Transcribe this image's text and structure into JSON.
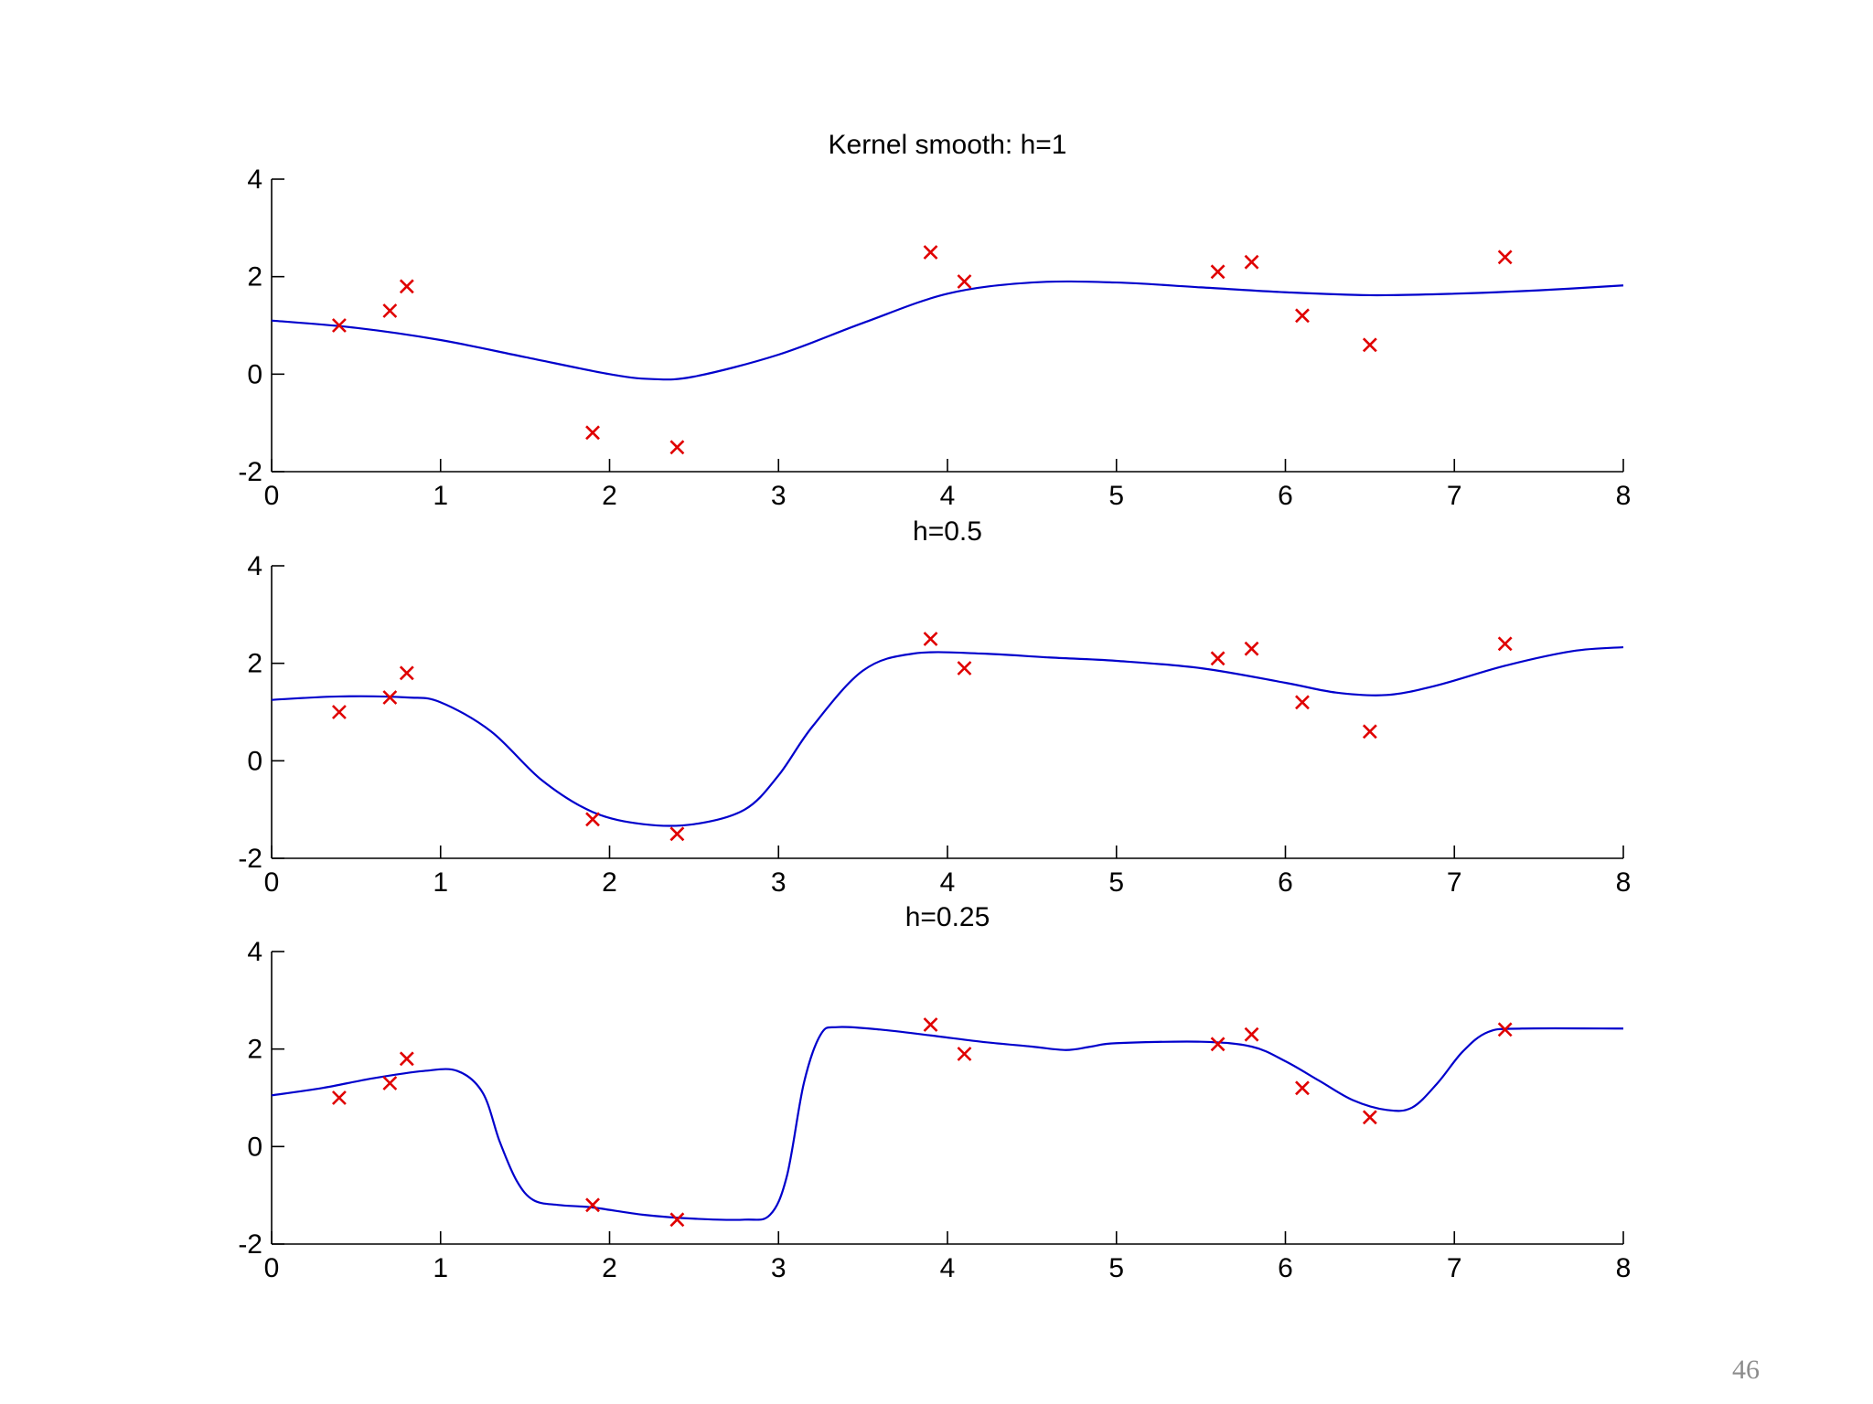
{
  "page_number": "46",
  "colors": {
    "curve": "#0000cc",
    "marker": "#e00000",
    "axis": "#000000"
  },
  "chart_data": [
    {
      "type": "scatter",
      "title": "Kernel smooth: h=1",
      "xlim": [
        0,
        8
      ],
      "ylim": [
        -2,
        4
      ],
      "xticks": [
        0,
        1,
        2,
        3,
        4,
        5,
        6,
        7,
        8
      ],
      "yticks": [
        -2,
        0,
        2,
        4
      ],
      "grid": false,
      "points": {
        "x": [
          0.4,
          0.7,
          0.8,
          1.9,
          2.4,
          3.9,
          4.1,
          5.6,
          5.8,
          6.1,
          6.5,
          7.3
        ],
        "y": [
          1.0,
          1.3,
          1.8,
          -1.2,
          -1.5,
          2.5,
          1.9,
          2.1,
          2.3,
          1.2,
          0.6,
          2.4
        ]
      },
      "curve": {
        "x": [
          0,
          0.5,
          1,
          1.5,
          2,
          2.25,
          2.5,
          3,
          3.5,
          4,
          4.5,
          5,
          5.5,
          6,
          6.5,
          7,
          7.5,
          8
        ],
        "y": [
          1.1,
          0.95,
          0.7,
          0.35,
          0.0,
          -0.1,
          -0.05,
          0.4,
          1.05,
          1.65,
          1.88,
          1.88,
          1.78,
          1.68,
          1.62,
          1.65,
          1.72,
          1.82
        ]
      }
    },
    {
      "type": "scatter",
      "title": "h=0.5",
      "xlim": [
        0,
        8
      ],
      "ylim": [
        -2,
        4
      ],
      "xticks": [
        0,
        1,
        2,
        3,
        4,
        5,
        6,
        7,
        8
      ],
      "yticks": [
        -2,
        0,
        2,
        4
      ],
      "grid": false,
      "points": {
        "x": [
          0.4,
          0.7,
          0.8,
          1.9,
          2.4,
          3.9,
          4.1,
          5.6,
          5.8,
          6.1,
          6.5,
          7.3
        ],
        "y": [
          1.0,
          1.3,
          1.8,
          -1.2,
          -1.5,
          2.5,
          1.9,
          2.1,
          2.3,
          1.2,
          0.6,
          2.4
        ]
      },
      "curve": {
        "x": [
          0,
          0.4,
          0.8,
          1.0,
          1.3,
          1.6,
          1.9,
          2.2,
          2.5,
          2.8,
          3.0,
          3.2,
          3.5,
          3.8,
          4.2,
          4.6,
          5.0,
          5.5,
          6.0,
          6.3,
          6.6,
          6.9,
          7.3,
          7.7,
          8.0
        ],
        "y": [
          1.25,
          1.32,
          1.3,
          1.2,
          0.6,
          -0.4,
          -1.05,
          -1.3,
          -1.3,
          -1.0,
          -0.3,
          0.7,
          1.85,
          2.2,
          2.2,
          2.12,
          2.05,
          1.9,
          1.6,
          1.4,
          1.35,
          1.55,
          1.95,
          2.25,
          2.33
        ]
      }
    },
    {
      "type": "scatter",
      "title": "h=0.25",
      "xlim": [
        0,
        8
      ],
      "ylim": [
        -2,
        4
      ],
      "xticks": [
        0,
        1,
        2,
        3,
        4,
        5,
        6,
        7,
        8
      ],
      "yticks": [
        -2,
        0,
        2,
        4
      ],
      "grid": false,
      "points": {
        "x": [
          0.4,
          0.7,
          0.8,
          1.9,
          2.4,
          3.9,
          4.1,
          5.6,
          5.8,
          6.1,
          6.5,
          7.3
        ],
        "y": [
          1.0,
          1.3,
          1.8,
          -1.2,
          -1.5,
          2.5,
          1.9,
          2.1,
          2.3,
          1.2,
          0.6,
          2.4
        ]
      },
      "curve": {
        "x": [
          0,
          0.3,
          0.6,
          0.9,
          1.1,
          1.25,
          1.35,
          1.45,
          1.55,
          1.7,
          1.9,
          2.2,
          2.5,
          2.8,
          2.95,
          3.05,
          3.15,
          3.25,
          3.35,
          3.6,
          3.9,
          4.2,
          4.5,
          4.7,
          4.85,
          5.0,
          5.5,
          5.8,
          6.0,
          6.2,
          6.4,
          6.6,
          6.75,
          6.9,
          7.05,
          7.2,
          7.4,
          8.0
        ],
        "y": [
          1.05,
          1.2,
          1.4,
          1.55,
          1.55,
          1.1,
          0.1,
          -0.7,
          -1.1,
          -1.2,
          -1.25,
          -1.4,
          -1.48,
          -1.5,
          -1.4,
          -0.6,
          1.3,
          2.3,
          2.45,
          2.4,
          2.28,
          2.15,
          2.05,
          1.98,
          2.05,
          2.12,
          2.15,
          2.05,
          1.75,
          1.35,
          0.95,
          0.75,
          0.8,
          1.3,
          1.95,
          2.35,
          2.42,
          2.42
        ]
      }
    }
  ]
}
